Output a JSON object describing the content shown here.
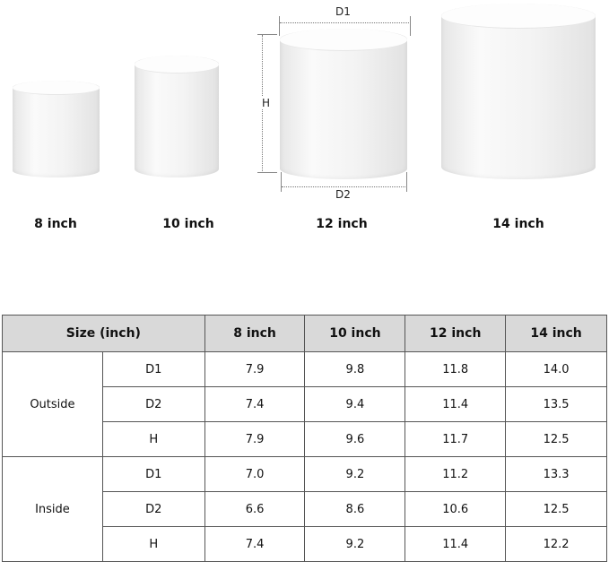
{
  "products": [
    {
      "label": "8 inch"
    },
    {
      "label": "10 inch"
    },
    {
      "label": "12 inch"
    },
    {
      "label": "14 inch"
    }
  ],
  "dimension_labels": {
    "d1": "D1",
    "d2": "D2",
    "h": "H"
  },
  "table": {
    "header": [
      "Size (inch)",
      "8 inch",
      "10 inch",
      "12 inch",
      "14 inch"
    ],
    "groups": [
      {
        "name": "Outside",
        "rows": [
          {
            "dim": "D1",
            "values": [
              "7.9",
              "9.8",
              "11.8",
              "14.0"
            ]
          },
          {
            "dim": "D2",
            "values": [
              "7.4",
              "9.4",
              "11.4",
              "13.5"
            ]
          },
          {
            "dim": "H",
            "values": [
              "7.9",
              "9.6",
              "11.7",
              "12.5"
            ]
          }
        ]
      },
      {
        "name": "Inside",
        "rows": [
          {
            "dim": "D1",
            "values": [
              "7.0",
              "9.2",
              "11.2",
              "13.3"
            ]
          },
          {
            "dim": "D2",
            "values": [
              "6.6",
              "8.6",
              "10.6",
              "12.5"
            ]
          },
          {
            "dim": "H",
            "values": [
              "7.4",
              "9.2",
              "11.4",
              "12.2"
            ]
          }
        ]
      }
    ]
  }
}
